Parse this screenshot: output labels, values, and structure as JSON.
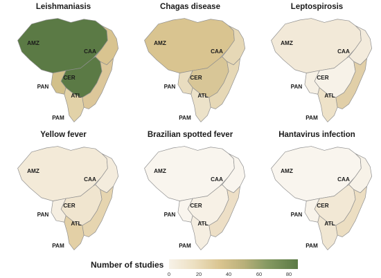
{
  "panels": [
    {
      "title": "Leishmaniasis",
      "fills": {
        "AMZ": "#5b7a45",
        "CER": "#5b7a45",
        "CAA": "#d9c490",
        "ATL": "#dcc79a",
        "PAN": "#d2c08a",
        "PAM": "#e2d2a8"
      }
    },
    {
      "title": "Chagas disease",
      "fills": {
        "AMZ": "#d9c490",
        "CER": "#d8c697",
        "CAA": "#e6d8b6",
        "ATL": "#e6d8b6",
        "PAN": "#e9ddc0",
        "PAM": "#ece2c9"
      }
    },
    {
      "title": "Leptospirosis",
      "fills": {
        "AMZ": "#f2e9d8",
        "CER": "#f7f2e8",
        "CAA": "#f3ebdc",
        "ATL": "#e1cfa8",
        "PAN": "#f6f0e4",
        "PAM": "#eee2c8"
      }
    },
    {
      "title": "Yellow fever",
      "fills": {
        "AMZ": "#f3ead8",
        "CER": "#f0e5cf",
        "CAA": "#f4ecdd",
        "ATL": "#e6d5b0",
        "PAN": "#f5eee1",
        "PAM": "#e3d0a6"
      }
    },
    {
      "title": "Brazilian spotted fever",
      "fills": {
        "AMZ": "#f9f5ee",
        "CER": "#f7f1e6",
        "CAA": "#f9f5ee",
        "ATL": "#eddfc6",
        "PAN": "#f9f5ee",
        "PAM": "#f5eee1"
      }
    },
    {
      "title": "Hantavirus infection",
      "fills": {
        "AMZ": "#f9f5ee",
        "CER": "#f2e8d5",
        "CAA": "#f7f2e8",
        "ATL": "#ecdec2",
        "PAN": "#f8f3ea",
        "PAM": "#f0e6d2"
      }
    }
  ],
  "region_labels": {
    "AMZ": "AMZ",
    "CAA": "CAA",
    "CER": "CER",
    "PAN": "PAN",
    "ATL": "ATL",
    "PAM": "PAM"
  },
  "legend": {
    "title": "Number of studies",
    "ticks": [
      "0",
      "20",
      "40",
      "60",
      "80"
    ],
    "tick_values": [
      0,
      20,
      40,
      60,
      80
    ],
    "max": 86
  },
  "colors": {
    "border": "#8f8f8f",
    "inner_border": "#ffffff"
  }
}
